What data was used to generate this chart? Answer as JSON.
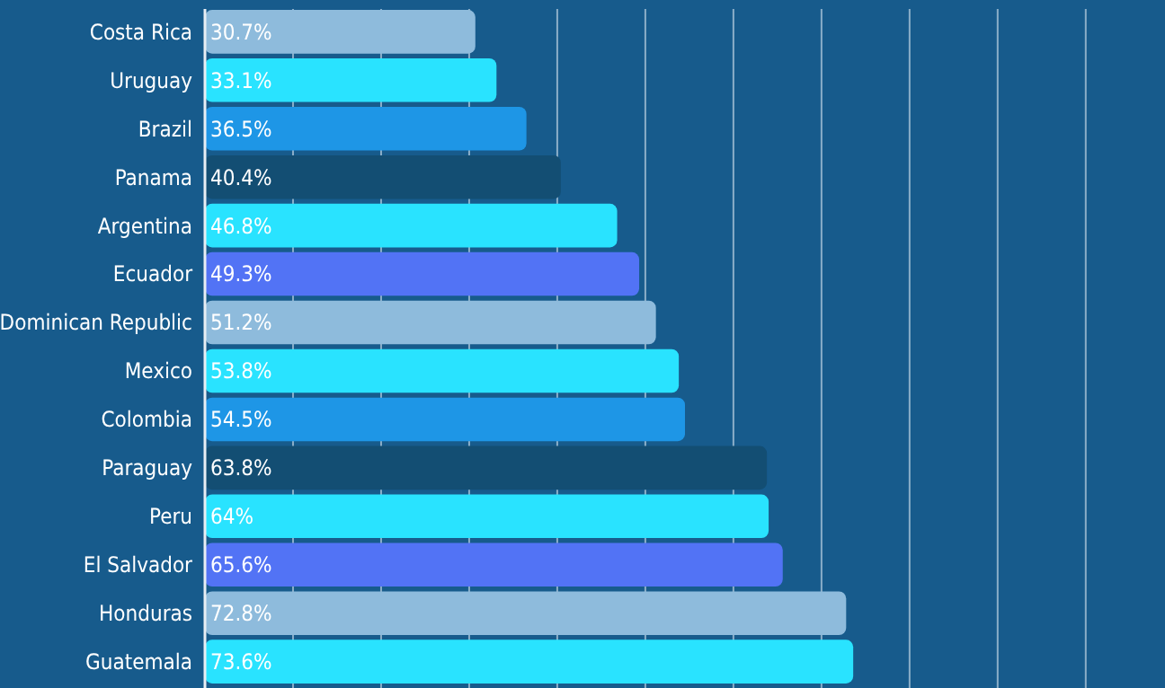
{
  "chart_data": {
    "type": "bar",
    "orientation": "horizontal",
    "categories": [
      "Costa Rica",
      "Uruguay",
      "Brazil",
      "Panama",
      "Argentina",
      "Ecuador",
      "Dominican Republic",
      "Mexico",
      "Colombia",
      "Paraguay",
      "Peru",
      "El Salvador",
      "Honduras",
      "Guatemala"
    ],
    "values": [
      30.7,
      33.1,
      36.5,
      40.4,
      46.8,
      49.3,
      51.2,
      53.8,
      54.5,
      63.8,
      64,
      65.6,
      72.8,
      73.6
    ],
    "value_labels": [
      "30.7%",
      "33.1%",
      "36.5%",
      "40.4%",
      "46.8%",
      "49.3%",
      "51.2%",
      "53.8%",
      "54.5%",
      "63.8%",
      "64%",
      "65.6%",
      "72.8%",
      "73.6%"
    ],
    "colors": [
      "#8ebbdc",
      "#29e3ff",
      "#1e96e6",
      "#134e73",
      "#29e3ff",
      "#5273f5",
      "#8ebbdc",
      "#29e3ff",
      "#1e96e6",
      "#134e73",
      "#29e3ff",
      "#5273f5",
      "#8ebbdc",
      "#29e3ff"
    ],
    "xlim": [
      0,
      109
    ],
    "xticks": [
      {
        "value": 0,
        "label": null
      },
      {
        "value": 10,
        "label": null
      },
      {
        "value": 20,
        "label": null
      },
      {
        "value": 30,
        "label": null
      },
      {
        "value": 40,
        "label": null
      },
      {
        "value": 50,
        "label": null
      },
      {
        "value": 60,
        "label": null
      },
      {
        "value": 70,
        "label": null
      },
      {
        "value": 80,
        "label": null
      },
      {
        "value": 90,
        "label": null
      },
      {
        "value": 100,
        "label": null
      }
    ],
    "grid": "x",
    "tick_labels": "y"
  }
}
